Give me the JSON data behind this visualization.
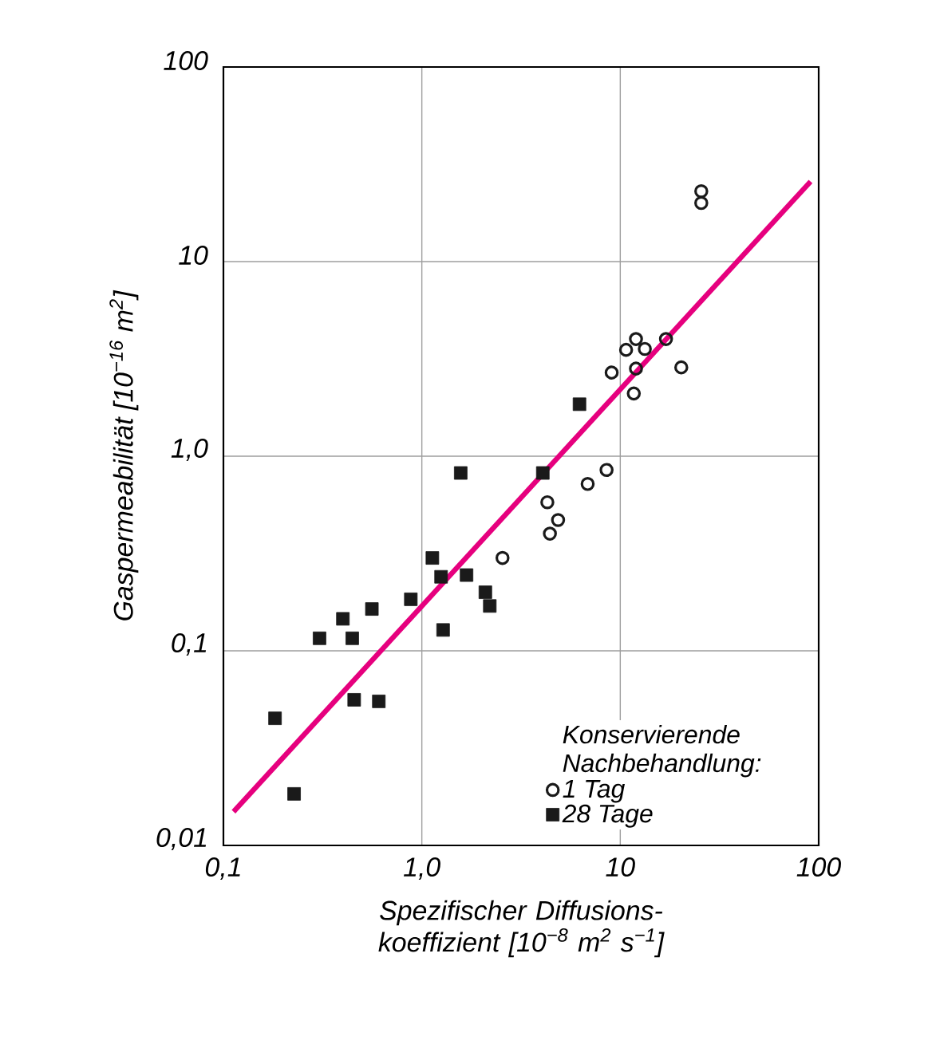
{
  "chart_data": {
    "type": "scatter",
    "xlabel": "Spezifischer Diffusions-koeffizient [10$^{−8}$ m$^{2}$ s$^{−1}$]",
    "ylabel": "Gaspermeabilität [10$^{−16}$ m$^{2}$]",
    "legend_title": "Konservierende Nachbehandlung:",
    "log": "xy",
    "grid": true,
    "legend": "bottom right",
    "xlim": [
      0.1,
      100
    ],
    "ylim": [
      0.01,
      100
    ],
    "xticks": [
      {
        "value": 0.1,
        "label": "0,1"
      },
      {
        "value": 1,
        "label": "1,0"
      },
      10,
      100
    ],
    "yticks": [
      {
        "value": 0.01,
        "label": "0,01"
      },
      {
        "value": 0.1,
        "label": "0,1"
      },
      {
        "value": 1,
        "label": "1,0"
      },
      10,
      100
    ],
    "series": [
      {
        "type": "line",
        "color": "#e6007e",
        "marker": "none",
        "x": [
          0.1125,
          91.0
        ],
        "values": [
          0.0149,
          25.8
        ]
      },
      {
        "name": "1 Tag",
        "color": "#1a1a1a",
        "marker": "circle",
        "x": [
          25.6,
          25.6,
          17.0,
          12.0,
          10.7,
          13.3,
          12.0,
          20.3,
          9.05,
          11.7,
          8.53,
          6.85,
          4.29,
          4.86,
          4.42,
          2.55
        ],
        "values": [
          23.0,
          20.0,
          4.0,
          4.0,
          3.52,
          3.56,
          2.82,
          2.86,
          2.69,
          2.1,
          0.85,
          0.72,
          0.58,
          0.47,
          0.4,
          0.3
        ]
      },
      {
        "name": "28 Tage",
        "color": "#1a1a1a",
        "marker": "square",
        "x": [
          6.23,
          4.07,
          1.57,
          1.13,
          1.25,
          1.68,
          2.09,
          2.2,
          0.88,
          1.28,
          0.56,
          0.4,
          0.305,
          0.446,
          0.456,
          0.607,
          0.182,
          0.227
        ],
        "values": [
          1.85,
          0.82,
          0.82,
          0.3,
          0.24,
          0.245,
          0.2,
          0.17,
          0.184,
          0.128,
          0.164,
          0.146,
          0.116,
          0.116,
          0.056,
          0.055,
          0.045,
          0.0184
        ]
      }
    ]
  }
}
